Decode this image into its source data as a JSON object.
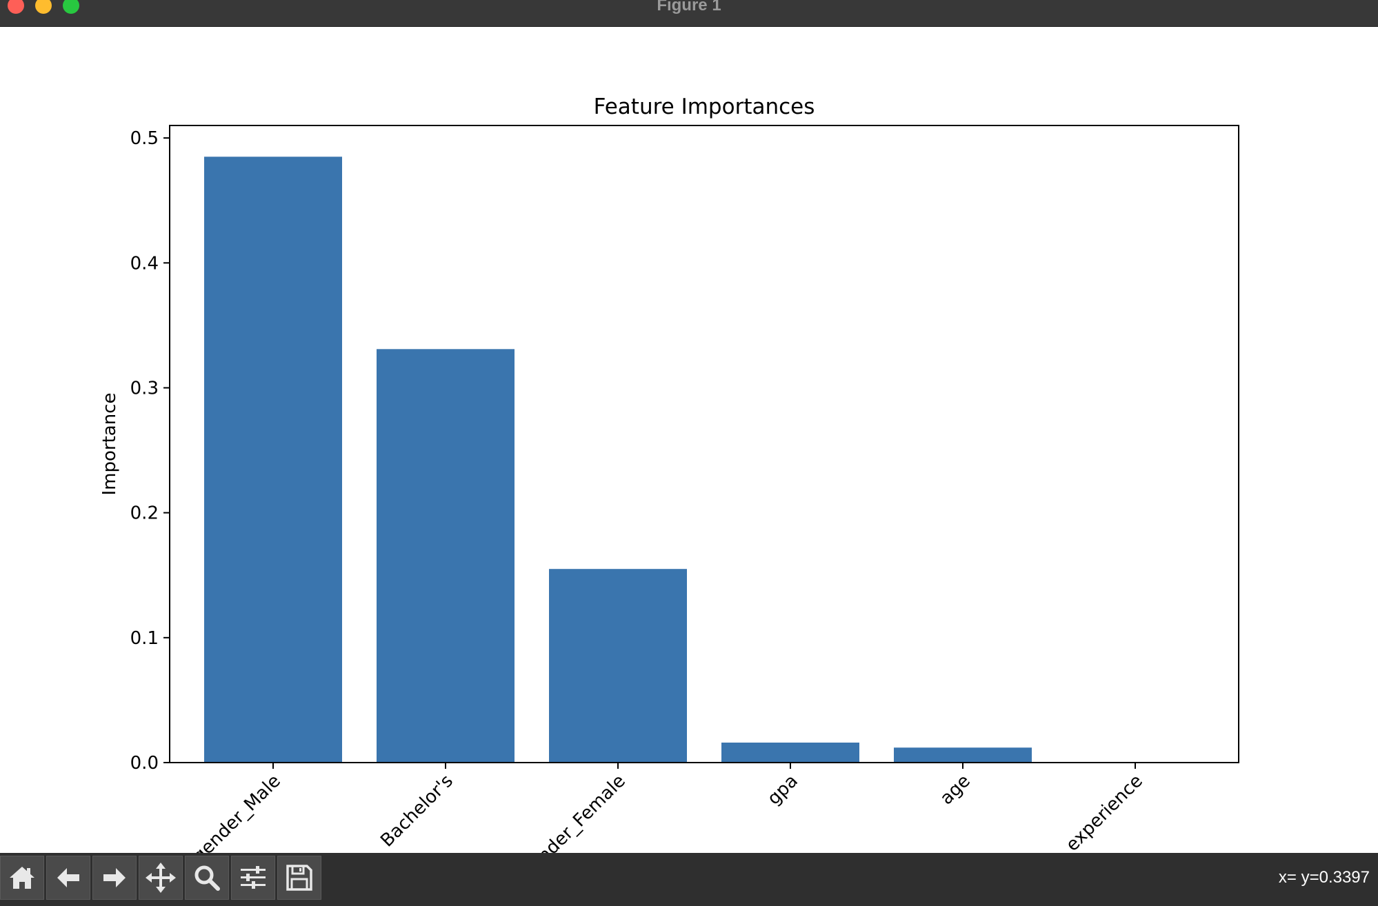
{
  "window": {
    "title": "Figure 1"
  },
  "toolbar": {
    "buttons": [
      {
        "name": "home",
        "icon": "home-icon"
      },
      {
        "name": "back",
        "icon": "arrow-left-icon"
      },
      {
        "name": "forward",
        "icon": "arrow-right-icon"
      },
      {
        "name": "pan",
        "icon": "move-icon"
      },
      {
        "name": "zoom",
        "icon": "magnifier-icon"
      },
      {
        "name": "configure-subplots",
        "icon": "sliders-icon"
      },
      {
        "name": "save",
        "icon": "floppy-disk-icon"
      }
    ],
    "coords_text": "x= y=0.3397"
  },
  "colors": {
    "bar": "#3a75ae",
    "titlebar": "#383838",
    "toolbar": "#2f2f2f"
  },
  "chart_data": {
    "type": "bar",
    "title": "Feature Importances",
    "xlabel": "",
    "ylabel": "Importance",
    "categories": [
      "gender_Male",
      "Bachelor's",
      "gender_Female",
      "gpa",
      "age",
      "experience"
    ],
    "visible_category_labels": [
      "ender_Male",
      "Bachelor's",
      "der_Female",
      "gpa",
      "age",
      "experience"
    ],
    "values": [
      0.485,
      0.331,
      0.155,
      0.016,
      0.012,
      0.0
    ],
    "ylim": [
      0,
      0.51
    ],
    "yticks": [
      0.0,
      0.1,
      0.2,
      0.3,
      0.4,
      0.5
    ],
    "ytick_labels": [
      "0.0",
      "0.1",
      "0.2",
      "0.3",
      "0.4",
      "0.5"
    ],
    "grid": false,
    "legend": "none"
  }
}
